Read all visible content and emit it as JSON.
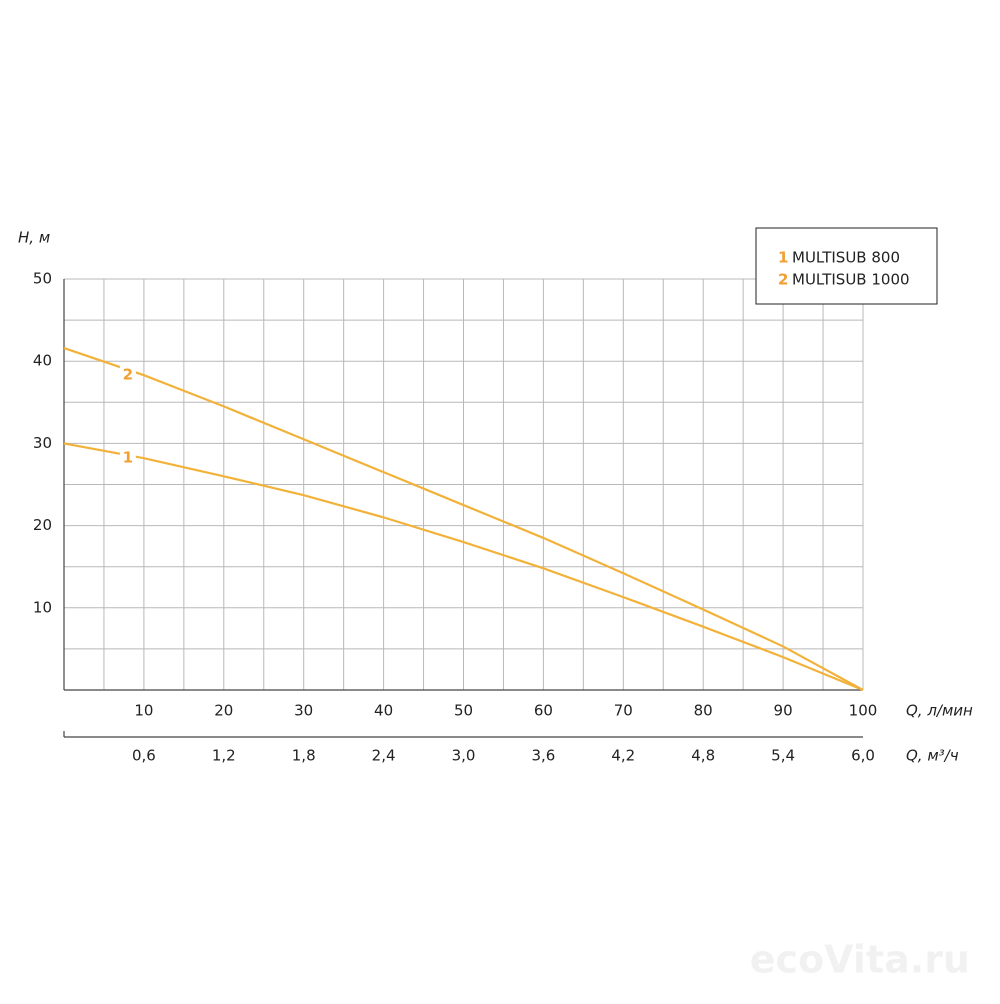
{
  "chart_data": {
    "type": "line",
    "ylabel": "H, м",
    "xlabel": "Q, л/мин",
    "x2label": "Q, м³/ч",
    "x": [
      0,
      10,
      20,
      30,
      40,
      50,
      60,
      70,
      80,
      90,
      100
    ],
    "series": [
      {
        "name": "MULTISUB 800",
        "label": "1",
        "color": "#f2b23a",
        "values": [
          30,
          28.2,
          26,
          23.7,
          21,
          18,
          14.8,
          11.3,
          7.7,
          4,
          0
        ]
      },
      {
        "name": "MULTISUB 1000",
        "label": "2",
        "color": "#f2b23a",
        "values": [
          41.6,
          38.3,
          34.5,
          30.5,
          26.5,
          22.5,
          18.5,
          14.2,
          9.8,
          5.3,
          0
        ]
      }
    ],
    "label_color": "#f0a030",
    "xlim": [
      0,
      100
    ],
    "xticks": [
      10,
      20,
      30,
      40,
      50,
      60,
      70,
      80,
      90,
      100
    ],
    "x_minor_ticks": [
      5,
      15,
      25,
      35,
      45,
      55,
      65,
      75,
      85,
      95
    ],
    "ylim": [
      0,
      50
    ],
    "yticks": [
      10,
      20,
      30,
      40,
      50
    ],
    "y_minor_ticks": [
      5,
      15,
      25,
      35,
      45
    ],
    "x2lim": [
      0,
      6
    ],
    "x2ticks": [
      {
        "value": 0.6,
        "label": "0,6"
      },
      {
        "value": 1.2,
        "label": "1,2"
      },
      {
        "value": 1.8,
        "label": "1,8"
      },
      {
        "value": 2.4,
        "label": "2,4"
      },
      {
        "value": 3.0,
        "label": "3,0"
      },
      {
        "value": 3.6,
        "label": "3,6"
      },
      {
        "value": 4.2,
        "label": "4,2"
      },
      {
        "value": 4.8,
        "label": "4,8"
      },
      {
        "value": 5.4,
        "label": "5,4"
      },
      {
        "value": 6.0,
        "label": "6,0"
      }
    ],
    "grid": true,
    "legend": "top-right",
    "watermark": "ecoVita.ru"
  }
}
